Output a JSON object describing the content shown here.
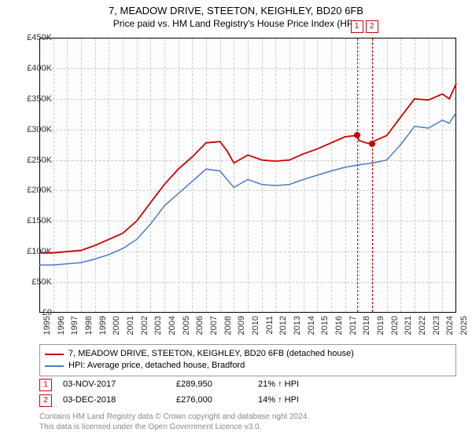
{
  "title": "7, MEADOW DRIVE, STEETON, KEIGHLEY, BD20 6FB",
  "subtitle": "Price paid vs. HM Land Registry's House Price Index (HPI)",
  "chart": {
    "type": "line",
    "background_color": "#fdfdfd",
    "grid_color": "#cccccc",
    "border_color": "#000000",
    "y": {
      "min": 0,
      "max": 450000,
      "ticks": [
        0,
        50000,
        100000,
        150000,
        200000,
        250000,
        300000,
        350000,
        400000,
        450000
      ],
      "labels": [
        "£0",
        "£50K",
        "£100K",
        "£150K",
        "£200K",
        "£250K",
        "£300K",
        "£350K",
        "£400K",
        "£450K"
      ],
      "label_fontsize": 11
    },
    "x": {
      "min": 1995,
      "max": 2025,
      "ticks": [
        1995,
        1996,
        1997,
        1998,
        1999,
        2000,
        2001,
        2002,
        2003,
        2004,
        2005,
        2006,
        2007,
        2008,
        2009,
        2010,
        2011,
        2012,
        2013,
        2014,
        2015,
        2016,
        2017,
        2018,
        2019,
        2020,
        2021,
        2022,
        2023,
        2024,
        2025
      ],
      "labels": [
        "1995",
        "1996",
        "1997",
        "1998",
        "1999",
        "2000",
        "2001",
        "2002",
        "2003",
        "2004",
        "2005",
        "2006",
        "2007",
        "2008",
        "2009",
        "2010",
        "2011",
        "2012",
        "2013",
        "2014",
        "2015",
        "2016",
        "2017",
        "2018",
        "2019",
        "2020",
        "2021",
        "2022",
        "2023",
        "2024",
        "2025"
      ],
      "label_fontsize": 11,
      "label_rotation": -90
    },
    "series": [
      {
        "name": "7, MEADOW DRIVE, STEETON, KEIGHLEY, BD20 6FB (detached house)",
        "color": "#cc0000",
        "line_width": 1.8,
        "x": [
          1995,
          1996,
          1997,
          1998,
          1999,
          2000,
          2001,
          2002,
          2003,
          2004,
          2005,
          2006,
          2007,
          2008,
          2008.5,
          2009,
          2010,
          2011,
          2012,
          2013,
          2014,
          2015,
          2016,
          2017,
          2017.84,
          2018,
          2018.5,
          2018.92,
          2019,
          2020,
          2021,
          2022,
          2023,
          2024,
          2024.5,
          2025
        ],
        "y": [
          98000,
          98000,
          100000,
          102000,
          110000,
          120000,
          130000,
          150000,
          180000,
          210000,
          235000,
          255000,
          278000,
          280000,
          265000,
          245000,
          258000,
          250000,
          248000,
          250000,
          260000,
          268000,
          278000,
          288000,
          289950,
          282000,
          278000,
          276000,
          280000,
          290000,
          320000,
          350000,
          348000,
          358000,
          350000,
          375000
        ]
      },
      {
        "name": "HPI: Average price, detached house, Bradford",
        "color": "#4a7bc8",
        "line_width": 1.5,
        "x": [
          1995,
          1996,
          1997,
          1998,
          1999,
          2000,
          2001,
          2002,
          2003,
          2004,
          2005,
          2006,
          2007,
          2008,
          2008.5,
          2009,
          2010,
          2011,
          2012,
          2013,
          2014,
          2015,
          2016,
          2017,
          2018,
          2019,
          2020,
          2021,
          2022,
          2023,
          2024,
          2024.5,
          2025
        ],
        "y": [
          78000,
          78000,
          80000,
          82000,
          88000,
          95000,
          105000,
          120000,
          145000,
          175000,
          195000,
          215000,
          235000,
          232000,
          218000,
          205000,
          218000,
          210000,
          208000,
          210000,
          218000,
          225000,
          232000,
          238000,
          242000,
          245000,
          250000,
          275000,
          305000,
          302000,
          315000,
          310000,
          328000
        ]
      }
    ],
    "sale_markers": [
      {
        "index": "1",
        "x": 2017.84,
        "y": 289950
      },
      {
        "index": "2",
        "x": 2018.92,
        "y": 276000
      }
    ]
  },
  "legend": {
    "border_color": "#999999",
    "items": [
      {
        "color": "#cc0000",
        "label": "7, MEADOW DRIVE, STEETON, KEIGHLEY, BD20 6FB (detached house)"
      },
      {
        "color": "#4a7bc8",
        "label": "HPI: Average price, detached house, Bradford"
      }
    ]
  },
  "sales": [
    {
      "index": "1",
      "date": "03-NOV-2017",
      "price": "£289,950",
      "diff": "21% ↑ HPI"
    },
    {
      "index": "2",
      "date": "03-DEC-2018",
      "price": "£276,000",
      "diff": "14% ↑ HPI"
    }
  ],
  "footer_line1": "Contains HM Land Registry data © Crown copyright and database right 2024.",
  "footer_line2": "This data is licensed under the Open Government Licence v3.0."
}
